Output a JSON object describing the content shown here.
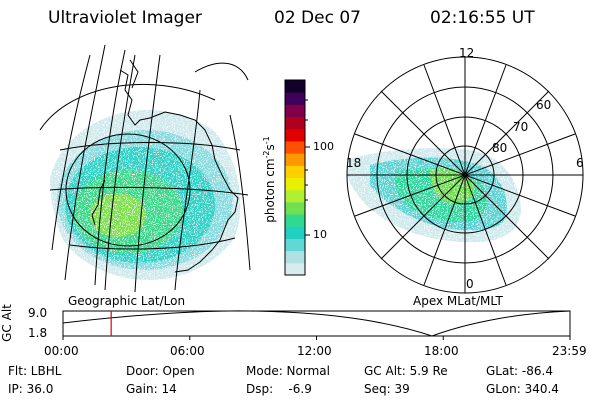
{
  "header": {
    "instrument": "Ultraviolet Imager",
    "date": "02 Dec 07",
    "time": "02:16:55 UT"
  },
  "geo_map": {
    "caption": "Geographic Lat/Lon"
  },
  "polar_map": {
    "caption": "Apex MLat/MLT",
    "mlt_labels": [
      "12",
      "18",
      "6",
      "0"
    ],
    "lat_labels": [
      "60",
      "70",
      "80"
    ]
  },
  "colorbar": {
    "unit_label": "photon cm",
    "unit_exp1": "-2",
    "unit_s": "s",
    "unit_exp2": "-1",
    "tick_100": "100",
    "tick_10": "10",
    "colors": [
      "#d8ecee",
      "#b0e0e4",
      "#60d8d8",
      "#20d0c0",
      "#30d890",
      "#70e050",
      "#b0f030",
      "#e8f000",
      "#ffd000",
      "#ff9800",
      "#ff5000",
      "#e00000",
      "#b00020",
      "#80004a",
      "#40005a",
      "#10002a"
    ]
  },
  "gc_alt_plot": {
    "axis_label": "GC Alt",
    "y_ticks": [
      "9.0",
      "1.8"
    ],
    "x_ticks": [
      "00:00",
      "06:00",
      "12:00",
      "18:00",
      "23:59"
    ],
    "current_time_hours": 2.28,
    "marker_color": "#e00000"
  },
  "info": {
    "filter": "Flt: LBHL",
    "ip": "IP: 36.0",
    "door": "Door: Open",
    "gain": "Gain: 14",
    "mode": "Mode: Normal",
    "dsp": "Dsp:    -6.9",
    "gc_alt": "GC Alt: 5.9 Re",
    "seq": "Seq: 39",
    "glat": "GLat: -86.4",
    "glon": "GLon: 340.4"
  }
}
